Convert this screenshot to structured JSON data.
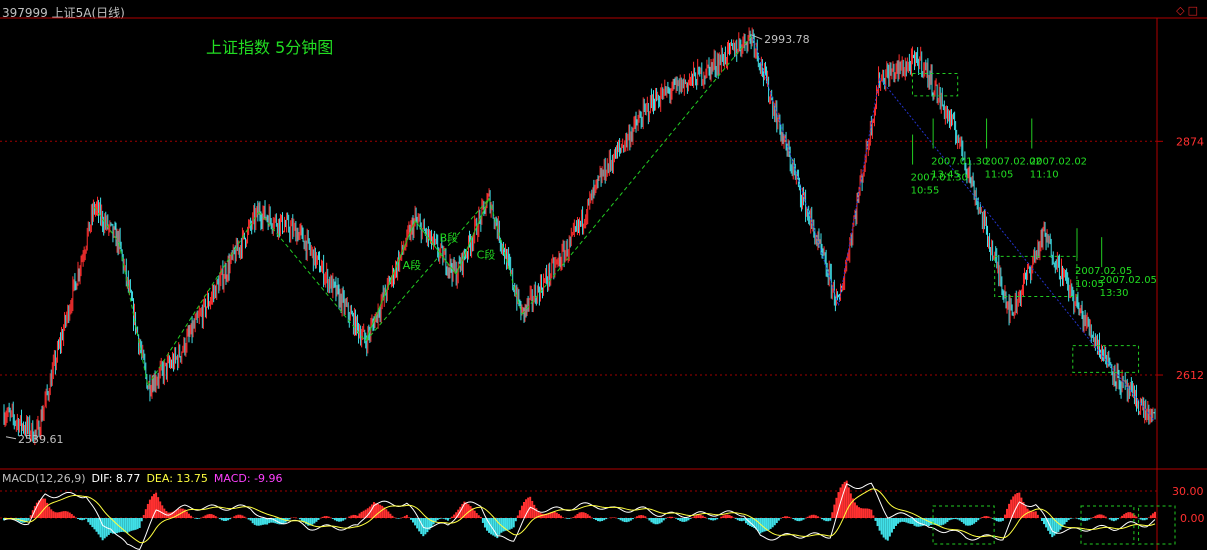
{
  "window": {
    "title": "397999 上证5A(日线)",
    "caption": "上证指数 5分钟图",
    "buttons": [
      "◇",
      "□"
    ]
  },
  "colors": {
    "background": "#000000",
    "up": "#ff3030",
    "down": "#40e0e8",
    "wave": "#22cc22",
    "trend": "#2233cc",
    "axis": "#b00000",
    "text_green": "#22dd22",
    "dif": "#ffffff",
    "dea": "#ffff40",
    "macd_label": "#ff40ff"
  },
  "chart_data": [
    {
      "type": "candlestick-annotated",
      "title": "上证指数 5分钟图",
      "y_ticks": [
        2874,
        2612
      ],
      "ylim": [
        2510,
        3010
      ],
      "high_label": "2993.78",
      "low_label": "2539.61",
      "swing_points": [
        {
          "i": 0,
          "v": 2570
        },
        {
          "i": 8,
          "v": 2545
        },
        {
          "i": 22,
          "v": 2800
        },
        {
          "i": 28,
          "v": 2760
        },
        {
          "i": 35,
          "v": 2600
        },
        {
          "i": 42,
          "v": 2630
        },
        {
          "i": 62,
          "v": 2795
        },
        {
          "i": 72,
          "v": 2770
        },
        {
          "i": 88,
          "v": 2650
        },
        {
          "i": 100,
          "v": 2785
        },
        {
          "i": 110,
          "v": 2725
        },
        {
          "i": 118,
          "v": 2810
        },
        {
          "i": 126,
          "v": 2680
        },
        {
          "i": 138,
          "v": 2760
        },
        {
          "i": 146,
          "v": 2840
        },
        {
          "i": 158,
          "v": 2920
        },
        {
          "i": 170,
          "v": 2950
        },
        {
          "i": 182,
          "v": 2993
        },
        {
          "i": 190,
          "v": 2870
        },
        {
          "i": 203,
          "v": 2690
        },
        {
          "i": 213,
          "v": 2945
        },
        {
          "i": 223,
          "v": 2965
        },
        {
          "i": 232,
          "v": 2880
        },
        {
          "i": 245,
          "v": 2680
        },
        {
          "i": 253,
          "v": 2770
        },
        {
          "i": 262,
          "v": 2680
        },
        {
          "i": 272,
          "v": 2600
        },
        {
          "i": 280,
          "v": 2560
        }
      ],
      "wave_labels": [
        "A段",
        "B段",
        "C段"
      ],
      "annotations": [
        {
          "date": "2007.01.30",
          "time": "10:55"
        },
        {
          "date": "2007.01.30",
          "time": "13:45"
        },
        {
          "date": "2007.02.02",
          "time": "11:05"
        },
        {
          "date": "2007.02.02",
          "time": "11:10"
        },
        {
          "date": "2007.02.05",
          "time": "10:05"
        },
        {
          "date": "2007.02.05",
          "time": "13:30"
        }
      ]
    },
    {
      "type": "macd",
      "label": "MACD(12,26,9)",
      "dif": "DIF: 8.77",
      "dea": "DEA: 13.75",
      "macd": "MACD: -9.96",
      "y_ticks": [
        "30.00",
        "0.00"
      ]
    }
  ]
}
